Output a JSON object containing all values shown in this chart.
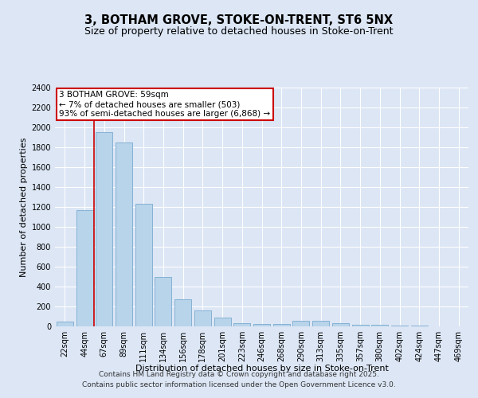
{
  "title_line1": "3, BOTHAM GROVE, STOKE-ON-TRENT, ST6 5NX",
  "title_line2": "Size of property relative to detached houses in Stoke-on-Trent",
  "xlabel": "Distribution of detached houses by size in Stoke-on-Trent",
  "ylabel": "Number of detached properties",
  "categories": [
    "22sqm",
    "44sqm",
    "67sqm",
    "89sqm",
    "111sqm",
    "134sqm",
    "156sqm",
    "178sqm",
    "201sqm",
    "223sqm",
    "246sqm",
    "268sqm",
    "290sqm",
    "313sqm",
    "335sqm",
    "357sqm",
    "380sqm",
    "402sqm",
    "424sqm",
    "447sqm",
    "469sqm"
  ],
  "values": [
    50,
    1170,
    1950,
    1850,
    1230,
    500,
    270,
    160,
    90,
    30,
    25,
    25,
    60,
    55,
    30,
    20,
    15,
    8,
    5,
    4,
    4
  ],
  "bar_color": "#b8d4ea",
  "bar_edge_color": "#7aaacf",
  "bg_color": "#dce6f5",
  "grid_color": "#ffffff",
  "annotation_box_text": "3 BOTHAM GROVE: 59sqm\n← 7% of detached houses are smaller (503)\n93% of semi-detached houses are larger (6,868) →",
  "annotation_box_color": "#ffffff",
  "annotation_box_edge_color": "#cc0000",
  "vline_x": 1.5,
  "vline_color": "#cc0000",
  "ylim": [
    0,
    2400
  ],
  "yticks": [
    0,
    200,
    400,
    600,
    800,
    1000,
    1200,
    1400,
    1600,
    1800,
    2000,
    2200,
    2400
  ],
  "footer_line1": "Contains HM Land Registry data © Crown copyright and database right 2025.",
  "footer_line2": "Contains public sector information licensed under the Open Government Licence v3.0.",
  "title_fontsize": 10.5,
  "subtitle_fontsize": 9,
  "axis_label_fontsize": 8,
  "tick_fontsize": 7,
  "annotation_fontsize": 7.5,
  "footer_fontsize": 6.5
}
